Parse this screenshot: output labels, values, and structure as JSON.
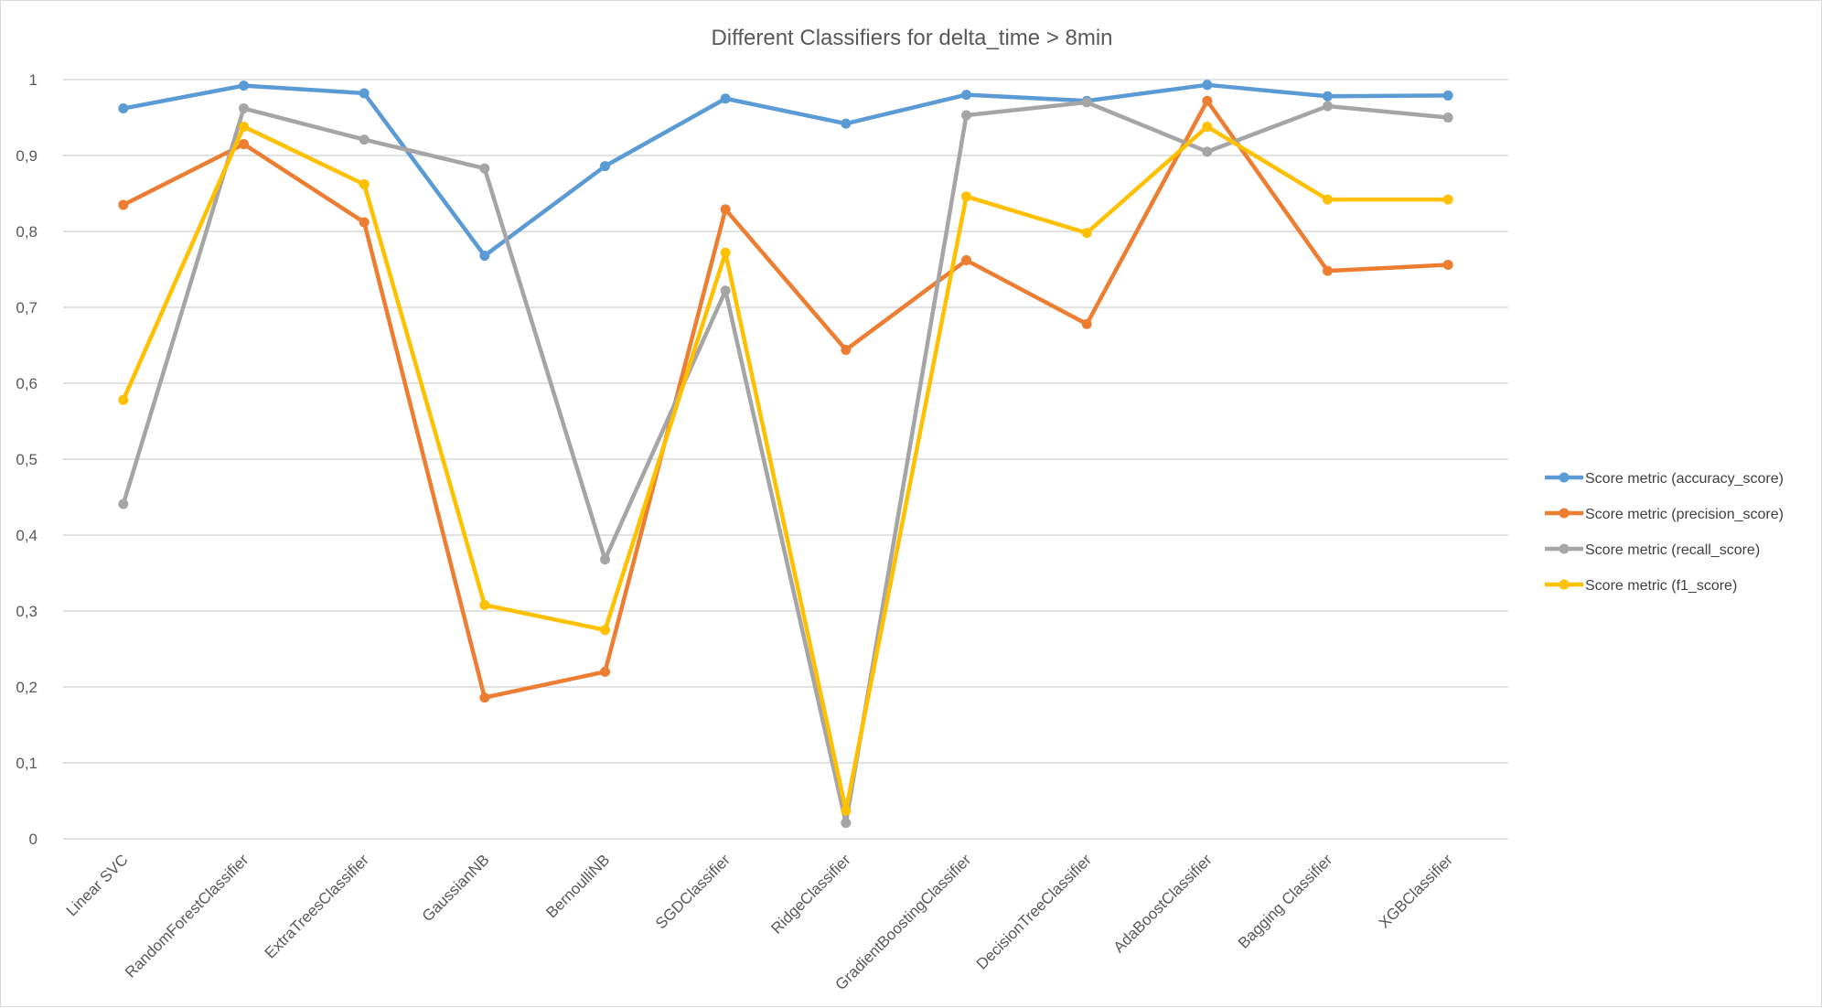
{
  "chart_data": {
    "type": "line",
    "title": "Different Classifiers for delta_time > 8min",
    "xlabel": "",
    "ylabel": "",
    "ylim": [
      0,
      1
    ],
    "yticks": [
      0,
      0.1,
      0.2,
      0.3,
      0.4,
      0.5,
      0.6,
      0.7,
      0.8,
      0.9,
      1
    ],
    "ytick_labels": [
      "0",
      "0,1",
      "0,2",
      "0,3",
      "0,4",
      "0,5",
      "0,6",
      "0,7",
      "0,8",
      "0,9",
      "1"
    ],
    "grid": true,
    "legend_position": "right",
    "categories": [
      "Linear SVC",
      "RandomForestClassifier",
      "ExtraTreesClassifier",
      "GaussianNB",
      "BernoulliNB",
      "SGDClassifier",
      "RidgeClassifier",
      "GradientBoostingClassifier",
      "DecisionTreeClassifier",
      "AdaBoostClassifier",
      "Bagging Classifier",
      "XGBClassifier"
    ],
    "series": [
      {
        "name": "Score metric (accuracy_score)",
        "color": "#5B9BD5",
        "values": [
          0.962,
          0.992,
          0.982,
          0.768,
          0.886,
          0.975,
          0.942,
          0.98,
          0.972,
          0.993,
          0.978,
          0.979
        ]
      },
      {
        "name": "Score metric (precision_score)",
        "color": "#ED7D31",
        "values": [
          0.835,
          0.915,
          0.812,
          0.186,
          0.22,
          0.829,
          0.644,
          0.762,
          0.678,
          0.972,
          0.748,
          0.756
        ]
      },
      {
        "name": "Score metric (recall_score)",
        "color": "#A5A5A5",
        "values": [
          0.441,
          0.962,
          0.921,
          0.883,
          0.368,
          0.722,
          0.021,
          0.953,
          0.97,
          0.905,
          0.965,
          0.95
        ]
      },
      {
        "name": "Score metric (f1_score)",
        "color": "#FFC000",
        "values": [
          0.578,
          0.938,
          0.862,
          0.308,
          0.275,
          0.772,
          0.037,
          0.846,
          0.798,
          0.938,
          0.842,
          0.842
        ]
      }
    ]
  }
}
